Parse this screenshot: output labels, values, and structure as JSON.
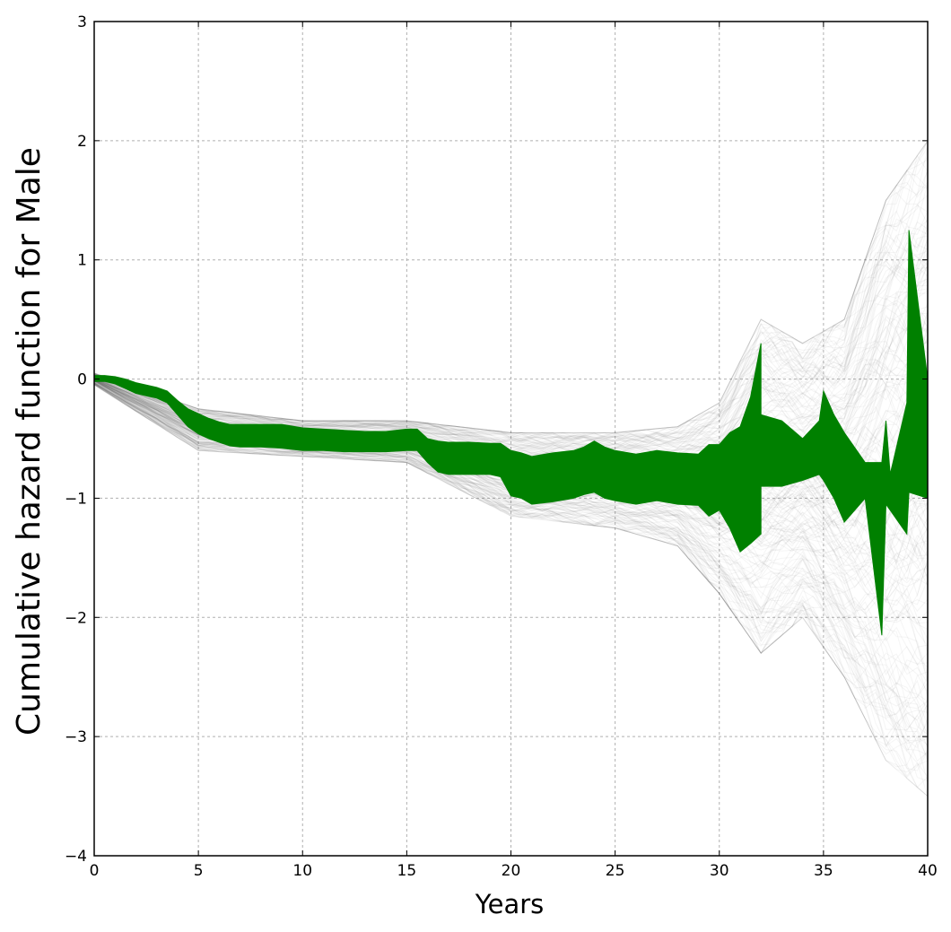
{
  "chart_data": {
    "type": "area",
    "title": "",
    "xlabel": "Years",
    "ylabel": "Cumulative hazard function for Male",
    "xlim": [
      0,
      40
    ],
    "ylim": [
      -4,
      3
    ],
    "xticks": [
      0,
      5,
      10,
      15,
      20,
      25,
      30,
      35,
      40
    ],
    "yticks": [
      -4,
      -3,
      -2,
      -1,
      0,
      1,
      2,
      3
    ],
    "xtick_labels": [
      "0",
      "5",
      "10",
      "15",
      "20",
      "25",
      "30",
      "35",
      "40"
    ],
    "ytick_labels": [
      "−4",
      "−3",
      "−2",
      "−1",
      "0",
      "1",
      "2",
      "3"
    ],
    "grid": true,
    "colors": {
      "band": "#008000",
      "samples": "#555555",
      "grid": "#b0b0b0",
      "axes": "#000000"
    },
    "series": [
      {
        "x": [
          0,
          0.5,
          1,
          1.5,
          2,
          2.5,
          3,
          3.5,
          4,
          4.5,
          5,
          5.5,
          6,
          6.5,
          7,
          8,
          9,
          10,
          11,
          12,
          13,
          14,
          15,
          15.5,
          16,
          16.5,
          17,
          18,
          19,
          19.5,
          20,
          20.5,
          21,
          22,
          23,
          23.5,
          24,
          24.5,
          25,
          26,
          27,
          28,
          29,
          29.5,
          30,
          30.5,
          31,
          31.5,
          32
        ],
        "upper": [
          0.03,
          0.03,
          0.02,
          0.0,
          -0.03,
          -0.05,
          -0.07,
          -0.1,
          -0.18,
          -0.25,
          -0.29,
          -0.33,
          -0.36,
          -0.38,
          -0.38,
          -0.38,
          -0.38,
          -0.41,
          -0.42,
          -0.43,
          -0.44,
          -0.44,
          -0.42,
          -0.42,
          -0.5,
          -0.52,
          -0.53,
          -0.53,
          -0.54,
          -0.54,
          -0.6,
          -0.62,
          -0.65,
          -0.62,
          -0.6,
          -0.57,
          -0.52,
          -0.57,
          -0.6,
          -0.63,
          -0.6,
          -0.62,
          -0.63,
          -0.55,
          -0.55,
          -0.45,
          -0.4,
          -0.15,
          0.3
        ],
        "lower": [
          -0.02,
          -0.02,
          -0.04,
          -0.08,
          -0.12,
          -0.14,
          -0.16,
          -0.2,
          -0.3,
          -0.4,
          -0.46,
          -0.5,
          -0.53,
          -0.56,
          -0.57,
          -0.57,
          -0.58,
          -0.6,
          -0.6,
          -0.61,
          -0.61,
          -0.61,
          -0.6,
          -0.6,
          -0.7,
          -0.78,
          -0.8,
          -0.8,
          -0.8,
          -0.82,
          -0.98,
          -1.0,
          -1.05,
          -1.03,
          -1.0,
          -0.97,
          -0.95,
          -1.0,
          -1.02,
          -1.05,
          -1.02,
          -1.05,
          -1.06,
          -1.15,
          -1.1,
          -1.25,
          -1.45,
          -1.38,
          -1.3
        ]
      },
      {
        "x": [
          32,
          33,
          34,
          34.8,
          35,
          35.5,
          36
        ],
        "upper": [
          -0.3,
          -0.35,
          -0.5,
          -0.35,
          -0.1,
          -0.3,
          -0.45
        ],
        "lower": [
          -0.9,
          -0.9,
          -0.85,
          -0.8,
          -0.85,
          -1.0,
          -1.2
        ]
      },
      {
        "x": [
          36,
          37,
          37.8,
          38,
          38.2,
          39,
          39.1,
          40
        ],
        "upper": [
          -0.45,
          -0.7,
          -0.7,
          -0.35,
          -0.8,
          -0.2,
          1.25,
          0.0
        ],
        "lower": [
          -1.2,
          -1.0,
          -2.15,
          -1.05,
          -1.1,
          -1.3,
          -0.95,
          -1.0
        ]
      }
    ],
    "samples_spread": {
      "x": [
        0,
        5,
        10,
        15,
        20,
        25,
        28,
        30,
        32,
        34,
        36,
        38,
        40
      ],
      "upper": [
        0.05,
        -0.25,
        -0.35,
        -0.35,
        -0.45,
        -0.45,
        -0.4,
        -0.2,
        0.5,
        0.3,
        0.5,
        1.5,
        2.0
      ],
      "lower": [
        -0.05,
        -0.6,
        -0.65,
        -0.7,
        -1.15,
        -1.25,
        -1.4,
        -1.8,
        -2.3,
        -2.0,
        -2.5,
        -3.2,
        -3.5
      ]
    }
  }
}
